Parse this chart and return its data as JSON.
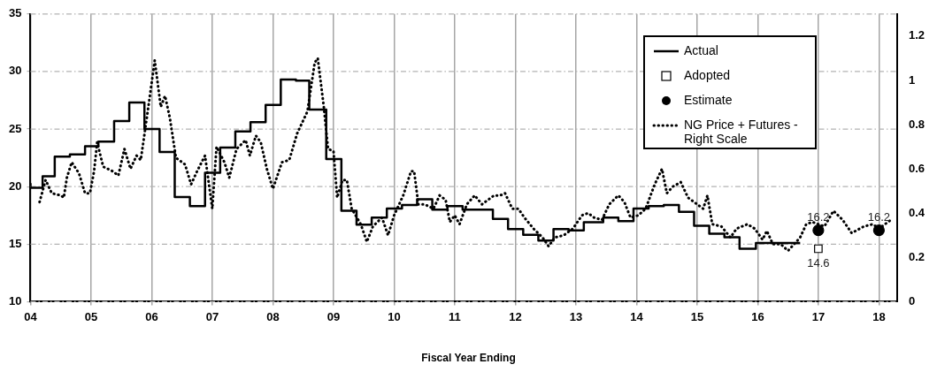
{
  "chart_data": {
    "type": "step",
    "xlabel": "Fiscal Year Ending",
    "xlim": [
      4,
      18.3
    ],
    "xticks": [
      {
        "value": 4,
        "label": "04"
      },
      {
        "value": 5,
        "label": "05"
      },
      {
        "value": 6,
        "label": "06"
      },
      {
        "value": 7,
        "label": "07"
      },
      {
        "value": 8,
        "label": "08"
      },
      {
        "value": 9,
        "label": "09"
      },
      {
        "value": 10,
        "label": "10"
      },
      {
        "value": 11,
        "label": "11"
      },
      {
        "value": 12,
        "label": "12"
      },
      {
        "value": 13,
        "label": "13"
      },
      {
        "value": 14,
        "label": "14"
      },
      {
        "value": 15,
        "label": "15"
      },
      {
        "value": 16,
        "label": "16"
      },
      {
        "value": 17,
        "label": "17"
      },
      {
        "value": 18,
        "label": "18"
      }
    ],
    "ylim": [
      10,
      35
    ],
    "yticks": [
      10,
      15,
      20,
      25,
      30,
      35
    ],
    "y2lim": [
      0,
      1.3
    ],
    "y2ticks": [
      0,
      0.2,
      0.4,
      0.6,
      0.8,
      1,
      1.2
    ],
    "grid": true,
    "legend": "top right",
    "series": [
      {
        "name": "Actual",
        "color": "#000000",
        "line_style": "solid",
        "marker": "none",
        "x": [
          4.0,
          4.2,
          4.4,
          4.65,
          4.9,
          5.12,
          5.38,
          5.63,
          5.88,
          6.13,
          6.38,
          6.63,
          6.88,
          7.13,
          7.38,
          7.63,
          7.88,
          8.13,
          8.38,
          8.6,
          8.88,
          9.13,
          9.38,
          9.63,
          9.88,
          10.13,
          10.38,
          10.63,
          10.88,
          11.13,
          11.63,
          11.88,
          12.13,
          12.38,
          12.63,
          12.88,
          13.13,
          13.45,
          13.7,
          13.95,
          14.2,
          14.45,
          14.7,
          14.95,
          15.2,
          15.45,
          15.7,
          15.97,
          16.45,
          16.7
        ],
        "values": [
          20.3,
          19.9,
          20.9,
          22.6,
          22.8,
          23.5,
          23.9,
          25.7,
          27.3,
          25.0,
          23.0,
          19.1,
          18.3,
          21.2,
          23.4,
          24.8,
          25.6,
          27.1,
          29.3,
          29.2,
          26.7,
          22.4,
          17.9,
          16.7,
          17.3,
          18.1,
          18.4,
          18.9,
          18.0,
          18.3,
          18.0,
          17.2,
          16.3,
          15.8,
          15.3,
          16.3,
          16.2,
          16.9,
          17.3,
          17.0,
          18.1,
          18.3,
          18.4,
          17.8,
          16.6,
          15.9,
          15.6,
          14.6,
          15.1,
          15.1
        ]
      },
      {
        "name": "Adopted",
        "type": "scatter",
        "color": "#000000",
        "marker": "square",
        "x": [
          17
        ],
        "values": [
          14.6
        ],
        "value_labels": [
          "14.6"
        ]
      },
      {
        "name": "Estimate",
        "type": "scatter",
        "color": "#000000",
        "marker": "circle",
        "x": [
          17,
          18
        ],
        "values": [
          16.2,
          16.2
        ],
        "value_labels": [
          "16.2",
          "16.2"
        ]
      },
      {
        "name": "NG Price + Futures - Right Scale",
        "type": "line",
        "axis": "y2",
        "color": "#000000",
        "line_style": "dotted",
        "marker": "none",
        "x": [
          4.15,
          4.25,
          4.35,
          4.5,
          4.55,
          4.6,
          4.68,
          4.8,
          4.9,
          4.98,
          5.05,
          5.1,
          5.2,
          5.35,
          5.45,
          5.55,
          5.65,
          5.75,
          5.82,
          5.95,
          6.05,
          6.15,
          6.22,
          6.3,
          6.4,
          6.55,
          6.65,
          6.75,
          6.88,
          7.0,
          7.07,
          7.2,
          7.28,
          7.4,
          7.55,
          7.62,
          7.72,
          7.8,
          7.9,
          8.0,
          8.15,
          8.27,
          8.4,
          8.57,
          8.69,
          8.74,
          8.84,
          8.91,
          9.0,
          9.06,
          9.15,
          9.22,
          9.3,
          9.45,
          9.55,
          9.65,
          9.8,
          9.9,
          10.0,
          10.15,
          10.28,
          10.33,
          10.4,
          10.5,
          10.65,
          10.75,
          10.85,
          10.92,
          11.0,
          11.08,
          11.2,
          11.33,
          11.45,
          11.55,
          11.65,
          11.75,
          11.83,
          11.95,
          12.05,
          12.15,
          12.3,
          12.45,
          12.55,
          12.65,
          12.8,
          12.95,
          13.1,
          13.2,
          13.3,
          13.43,
          13.55,
          13.7,
          13.8,
          13.9,
          14.03,
          14.15,
          14.3,
          14.42,
          14.5,
          14.6,
          14.73,
          14.85,
          15.0,
          15.1,
          15.17,
          15.25,
          15.4,
          15.55,
          15.65,
          15.83,
          15.95,
          16.08,
          16.15,
          16.25,
          16.38,
          16.5,
          16.6,
          16.7,
          16.8,
          16.9,
          17.0,
          17.1,
          17.25,
          17.4,
          17.55,
          17.75,
          17.9,
          18.0,
          18.2
        ],
        "values": [
          0.45,
          0.55,
          0.49,
          0.48,
          0.47,
          0.56,
          0.63,
          0.58,
          0.49,
          0.49,
          0.59,
          0.72,
          0.61,
          0.59,
          0.57,
          0.69,
          0.6,
          0.66,
          0.64,
          0.89,
          1.09,
          0.88,
          0.93,
          0.83,
          0.65,
          0.62,
          0.53,
          0.59,
          0.66,
          0.42,
          0.7,
          0.63,
          0.56,
          0.69,
          0.73,
          0.66,
          0.75,
          0.72,
          0.6,
          0.51,
          0.63,
          0.64,
          0.76,
          0.86,
          1.08,
          1.1,
          0.88,
          0.69,
          0.68,
          0.47,
          0.55,
          0.55,
          0.42,
          0.35,
          0.27,
          0.34,
          0.38,
          0.3,
          0.39,
          0.48,
          0.59,
          0.59,
          0.44,
          0.44,
          0.42,
          0.48,
          0.46,
          0.36,
          0.39,
          0.35,
          0.44,
          0.48,
          0.44,
          0.46,
          0.48,
          0.48,
          0.49,
          0.42,
          0.42,
          0.38,
          0.33,
          0.29,
          0.25,
          0.29,
          0.3,
          0.33,
          0.39,
          0.4,
          0.38,
          0.37,
          0.44,
          0.48,
          0.45,
          0.38,
          0.39,
          0.42,
          0.53,
          0.6,
          0.49,
          0.52,
          0.54,
          0.47,
          0.44,
          0.42,
          0.48,
          0.35,
          0.34,
          0.29,
          0.33,
          0.35,
          0.33,
          0.28,
          0.32,
          0.26,
          0.26,
          0.23,
          0.26,
          0.29,
          0.35,
          0.36,
          0.35,
          0.34,
          0.41,
          0.37,
          0.31,
          0.34,
          0.35,
          0.33,
          0.37
        ]
      }
    ]
  }
}
